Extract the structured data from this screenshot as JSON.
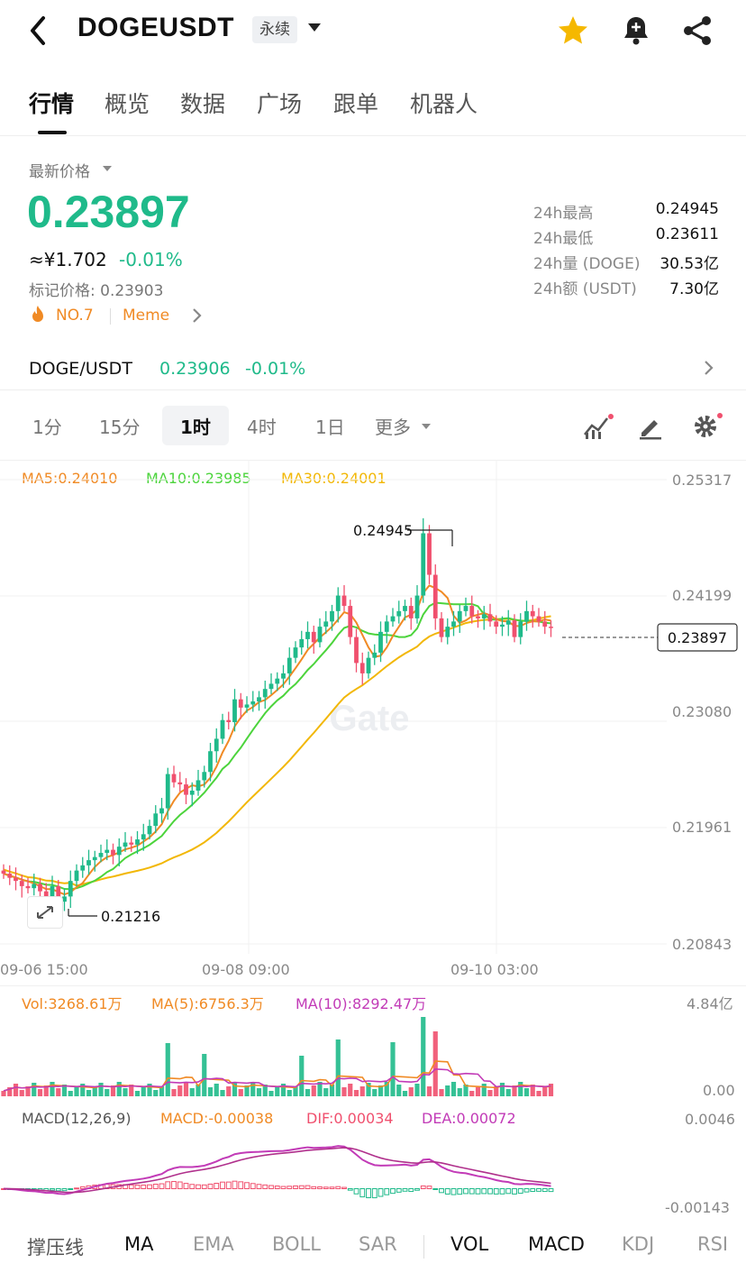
{
  "header": {
    "pair": "DOGEUSDT",
    "contract_type": "永续"
  },
  "tabs": [
    "行情",
    "概览",
    "数据",
    "广场",
    "跟单",
    "机器人"
  ],
  "price": {
    "latest_label": "最新价格",
    "last": "0.23897",
    "cny": "≈¥1.702",
    "change": "-0.01%",
    "mark_label": "标记价格: 0.23903",
    "rank": "NO.7",
    "tag": "Meme"
  },
  "stats": [
    {
      "label": "24h最高",
      "value": "0.24945"
    },
    {
      "label": "24h最低",
      "value": "0.23611"
    },
    {
      "label": "24h量 (DOGE)",
      "value": "30.53亿"
    },
    {
      "label": "24h额 (USDT)",
      "value": "7.30亿"
    }
  ],
  "spot": {
    "pair": "DOGE/USDT",
    "price": "0.23906",
    "change": "-0.01%"
  },
  "timeframes": [
    "1分",
    "15分",
    "1时",
    "4时",
    "1日",
    "更多"
  ],
  "active_timeframe": "1时",
  "ma_legend": {
    "ma5": "MA5:0.24010",
    "ma10": "MA10:0.23985",
    "ma30": "MA30:0.24001"
  },
  "price_axis": [
    "0.25317",
    "0.24199",
    "0.23080",
    "0.21961",
    "0.20843"
  ],
  "high_marker": "0.24945",
  "low_marker": "0.21216",
  "current_marker": "0.23897",
  "watermark": "Gate",
  "time_axis": [
    "09-06 15:00",
    "09-08 09:00",
    "09-10 03:00"
  ],
  "volume": {
    "vol": "Vol:3268.61万",
    "ma5": "MA(5):6756.3万",
    "ma10": "MA(10):8292.47万",
    "axis_top": "4.84亿",
    "axis_bottom": "0.00"
  },
  "macd": {
    "title": "MACD(12,26,9)",
    "macd": "MACD:-0.00038",
    "dif": "DIF:0.00034",
    "dea": "DEA:0.00072",
    "axis_top": "0.0046",
    "axis_bottom": "-0.00143"
  },
  "indicator_bar": [
    "撑压线",
    "MA",
    "EMA",
    "BOLL",
    "SAR",
    "VOL",
    "MACD",
    "KDJ",
    "RSI"
  ],
  "colors": {
    "up": "#1fba8a",
    "down": "#f0506e",
    "ma5": "#f08a24",
    "ma10": "#4cd43c",
    "ma30": "#f2b705",
    "macd_dif": "#c23bb7",
    "star": "#f5b800"
  },
  "chart_data": {
    "type": "candlestick",
    "price_range": [
      0.20843,
      0.25317
    ],
    "candles_note": "approximate hourly OHLC",
    "close": [
      0.2152,
      0.2148,
      0.2145,
      0.214,
      0.2138,
      0.2142,
      0.2135,
      0.213,
      0.214,
      0.2125,
      0.213,
      0.2145,
      0.2155,
      0.216,
      0.2165,
      0.2168,
      0.2172,
      0.2175,
      0.217,
      0.2178,
      0.2182,
      0.218,
      0.2185,
      0.219,
      0.2198,
      0.221,
      0.2215,
      0.2248,
      0.224,
      0.2238,
      0.2228,
      0.2232,
      0.2242,
      0.225,
      0.227,
      0.2282,
      0.23,
      0.2298,
      0.232,
      0.2312,
      0.2315,
      0.2318,
      0.2322,
      0.233,
      0.2335,
      0.234,
      0.2345,
      0.236,
      0.237,
      0.2378,
      0.2385,
      0.2375,
      0.239,
      0.2395,
      0.2405,
      0.242,
      0.241,
      0.238,
      0.2355,
      0.2345,
      0.236,
      0.2365,
      0.2385,
      0.2395,
      0.24,
      0.2405,
      0.241,
      0.2398,
      0.242,
      0.248,
      0.244,
      0.2398,
      0.238,
      0.239,
      0.2395,
      0.2405,
      0.241,
      0.24,
      0.2398,
      0.2402,
      0.2395,
      0.239,
      0.2392,
      0.2396,
      0.238,
      0.2395,
      0.2405,
      0.24,
      0.2395,
      0.239,
      0.2389
    ]
  }
}
